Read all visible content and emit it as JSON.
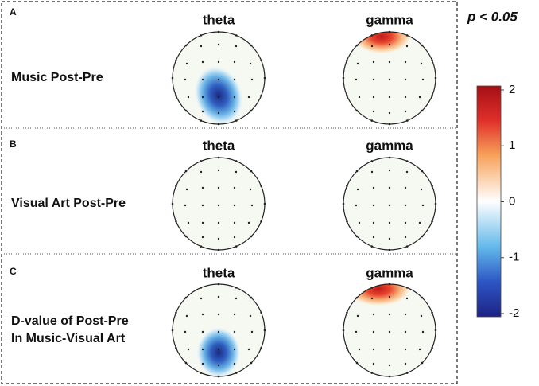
{
  "panels": [
    {
      "letter": "A",
      "label": [
        "Music Post-Pre"
      ],
      "maps": [
        "theta",
        "gamma"
      ]
    },
    {
      "letter": "B",
      "label": [
        "Visual Art Post-Pre"
      ],
      "maps": [
        "theta",
        "gamma"
      ]
    },
    {
      "letter": "C",
      "label": [
        "D-value of Post-Pre",
        "In Music-Visual Art"
      ],
      "maps": [
        "theta",
        "gamma"
      ]
    }
  ],
  "significance": "p < 0.05",
  "colorbar": {
    "lim": [
      -2,
      2
    ],
    "ticks": [
      2,
      1,
      0,
      -1,
      -2
    ]
  }
}
